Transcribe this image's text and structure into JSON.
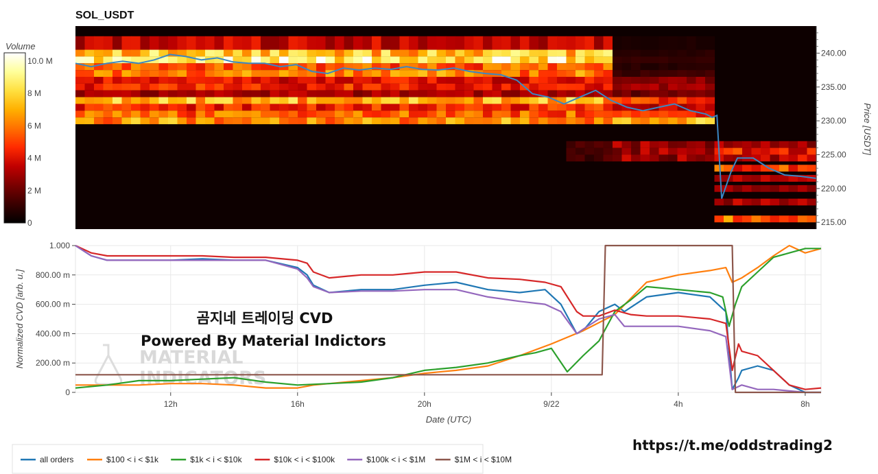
{
  "title": "SOL_USDT",
  "colorbar": {
    "label": "Volume",
    "ticks": [
      "10.0 M",
      "8 M",
      "6 M",
      "4 M",
      "2 M",
      "0"
    ],
    "tick_values": [
      10,
      8,
      6,
      4,
      2,
      0
    ],
    "max": 10.5,
    "colors": [
      "#000000",
      "#3a0000",
      "#7a0000",
      "#c00000",
      "#ff2a00",
      "#ff7000",
      "#ffb000",
      "#ffe040",
      "#ffff9a",
      "#ffffff"
    ]
  },
  "overlay_text": {
    "line1": "곰지네 트레이딩 CVD",
    "line2": "Powered By Material Indictors"
  },
  "watermark": {
    "line1": "MATERIAL",
    "line2": "INDICATORS"
  },
  "url": "https://t.me/oddstrading2",
  "chart_data": [
    {
      "type": "heatmap",
      "title": "SOL_USDT",
      "ylabel": "Price [USDT]",
      "ylim": [
        214,
        244
      ],
      "yticks": [
        "240.00",
        "235.00",
        "230.00",
        "225.00",
        "220.00",
        "215.00"
      ],
      "ytick_values": [
        240,
        235,
        230,
        225,
        220,
        215
      ],
      "x_range": [
        9.0,
        32.5
      ],
      "value_unit": "M",
      "band_rows": [
        {
          "y0": 240.5,
          "y1": 242.5,
          "pre": 3.5,
          "post": 0.6
        },
        {
          "y0": 239.5,
          "y1": 240.5,
          "pre": 7.5,
          "post": 0.8
        },
        {
          "y0": 238.5,
          "y1": 239.5,
          "pre": 8.5,
          "post": 1.0
        },
        {
          "y0": 237.5,
          "y1": 238.5,
          "pre": 5.5,
          "post": 0.8
        },
        {
          "y0": 236.5,
          "y1": 237.5,
          "pre": 6.0,
          "post": 1.2
        },
        {
          "y0": 235.5,
          "y1": 236.5,
          "pre": 4.0,
          "post": 2.5
        },
        {
          "y0": 234.5,
          "y1": 235.5,
          "pre": 4.5,
          "post": 3.0
        },
        {
          "y0": 233.5,
          "y1": 234.5,
          "pre": 3.0,
          "post": 2.0
        },
        {
          "y0": 232.5,
          "y1": 233.5,
          "pre": 7.0,
          "post": 5.0
        },
        {
          "y0": 231.5,
          "y1": 232.5,
          "pre": 4.5,
          "post": 3.5
        },
        {
          "y0": 230.5,
          "y1": 231.5,
          "pre": 5.5,
          "post": 4.5
        },
        {
          "y0": 229.5,
          "y1": 230.5,
          "pre": 6.5,
          "post": 7.0
        }
      ],
      "break_time": 26.0,
      "end_time": 29.3,
      "late_band_rows": [
        {
          "y0": 226.0,
          "y1": 227.0,
          "v": 3.0
        },
        {
          "y0": 225.0,
          "y1": 226.0,
          "v": 4.5
        },
        {
          "y0": 224.0,
          "y1": 225.0,
          "v": 3.5
        },
        {
          "y0": 222.5,
          "y1": 223.5,
          "v": 5.0
        },
        {
          "y0": 221.0,
          "y1": 222.0,
          "v": 3.5
        },
        {
          "y0": 219.5,
          "y1": 220.5,
          "v": 2.5
        },
        {
          "y0": 217.5,
          "y1": 218.5,
          "v": 3.0
        },
        {
          "y0": 215.0,
          "y1": 216.0,
          "v": 5.5
        }
      ],
      "price_line": {
        "name": "price",
        "color": "#3a87c4",
        "x": [
          9.0,
          9.5,
          10.0,
          10.5,
          11.0,
          11.5,
          12.0,
          12.5,
          13.0,
          13.5,
          14.0,
          14.5,
          15.0,
          15.5,
          16.0,
          16.5,
          17.0,
          17.5,
          18.0,
          18.5,
          19.0,
          19.5,
          20.0,
          20.5,
          21.0,
          21.5,
          22.0,
          22.5,
          23.0,
          23.5,
          24.0,
          24.5,
          25.0,
          25.5,
          26.0,
          26.5,
          27.0,
          27.5,
          28.0,
          28.5,
          29.0,
          29.2,
          29.35,
          29.5,
          29.8,
          30.0,
          30.5,
          31.0,
          31.5,
          32.0,
          32.5
        ],
        "y": [
          238.5,
          238.0,
          238.5,
          238.8,
          238.5,
          239.0,
          239.8,
          239.5,
          239.0,
          239.3,
          238.7,
          238.5,
          238.5,
          238.0,
          238.3,
          237.3,
          237.0,
          237.8,
          237.5,
          237.8,
          237.6,
          238.0,
          237.6,
          237.5,
          237.8,
          237.3,
          237.0,
          236.8,
          236.0,
          234.0,
          233.5,
          232.5,
          233.5,
          234.5,
          233.0,
          232.0,
          231.5,
          232.0,
          232.5,
          231.5,
          231.0,
          230.5,
          230.8,
          218.5,
          222.5,
          224.5,
          224.5,
          223.0,
          222.0,
          221.8,
          221.5
        ]
      }
    },
    {
      "type": "line",
      "xlabel": "Date (UTC)",
      "ylabel": "Normalized CVD [arb. u.]",
      "ylim": [
        0,
        1.0
      ],
      "yticks": [
        "1.000",
        "800.00 m",
        "600.00 m",
        "400.00 m",
        "200.00 m",
        "0"
      ],
      "ytick_values": [
        1.0,
        0.8,
        0.6,
        0.4,
        0.2,
        0
      ],
      "xlim": [
        9.0,
        32.5
      ],
      "xticks": [
        "12h",
        "16h",
        "20h",
        "9/22",
        "4h",
        "8h"
      ],
      "xtick_values": [
        12,
        16,
        20,
        24,
        28,
        32
      ],
      "legend_position": "bottom",
      "series": [
        {
          "name": "all orders",
          "color": "#1f77b4",
          "x": [
            9.0,
            9.5,
            10.0,
            11.0,
            12.0,
            13.0,
            14.0,
            15.0,
            16.0,
            16.3,
            16.5,
            17.0,
            18.0,
            19.0,
            20.0,
            21.0,
            22.0,
            23.0,
            23.8,
            24.3,
            24.8,
            25.0,
            25.5,
            26.0,
            26.3,
            27.0,
            28.0,
            29.0,
            29.5,
            29.7,
            29.9,
            30.0,
            30.5,
            31.0,
            31.5,
            32.0,
            32.5
          ],
          "y": [
            1.0,
            0.93,
            0.9,
            0.9,
            0.9,
            0.91,
            0.9,
            0.9,
            0.85,
            0.8,
            0.73,
            0.68,
            0.7,
            0.7,
            0.73,
            0.75,
            0.7,
            0.68,
            0.7,
            0.6,
            0.4,
            0.42,
            0.55,
            0.6,
            0.55,
            0.65,
            0.68,
            0.65,
            0.55,
            0.02,
            0.1,
            0.15,
            0.18,
            0.15,
            0.05,
            0.0,
            0.0
          ]
        },
        {
          "name": "$100 < i < $1k",
          "color": "#ff7f0e",
          "x": [
            9.0,
            10.0,
            11.0,
            12.0,
            13.0,
            14.0,
            15.0,
            16.0,
            16.5,
            17.0,
            18.0,
            19.0,
            20.0,
            21.0,
            22.0,
            23.0,
            24.0,
            25.0,
            26.0,
            27.0,
            28.0,
            29.0,
            29.5,
            29.7,
            30.0,
            30.5,
            31.0,
            31.5,
            32.0,
            32.5
          ],
          "y": [
            0.05,
            0.05,
            0.05,
            0.06,
            0.06,
            0.05,
            0.03,
            0.03,
            0.05,
            0.06,
            0.08,
            0.1,
            0.13,
            0.15,
            0.18,
            0.25,
            0.33,
            0.42,
            0.53,
            0.75,
            0.8,
            0.83,
            0.85,
            0.75,
            0.78,
            0.85,
            0.93,
            1.0,
            0.95,
            0.98
          ]
        },
        {
          "name": "$1k < i < $10k",
          "color": "#2ca02c",
          "x": [
            9.0,
            10.0,
            11.0,
            12.0,
            13.0,
            14.0,
            15.0,
            16.0,
            17.0,
            18.0,
            19.0,
            20.0,
            21.0,
            22.0,
            23.0,
            23.5,
            24.0,
            24.5,
            25.0,
            25.5,
            26.0,
            26.5,
            27.0,
            28.0,
            29.0,
            29.4,
            29.6,
            29.8,
            30.0,
            30.5,
            31.0,
            31.5,
            32.0,
            32.5
          ],
          "y": [
            0.03,
            0.05,
            0.08,
            0.08,
            0.09,
            0.1,
            0.07,
            0.05,
            0.06,
            0.07,
            0.1,
            0.15,
            0.17,
            0.2,
            0.25,
            0.27,
            0.3,
            0.14,
            0.25,
            0.35,
            0.55,
            0.63,
            0.72,
            0.7,
            0.68,
            0.65,
            0.45,
            0.6,
            0.72,
            0.82,
            0.92,
            0.95,
            0.98,
            0.98
          ]
        },
        {
          "name": "$10k < i < $100k",
          "color": "#d62728",
          "x": [
            9.0,
            9.5,
            10.0,
            11.0,
            12.0,
            13.0,
            14.0,
            15.0,
            16.0,
            16.3,
            16.5,
            17.0,
            18.0,
            19.0,
            20.0,
            21.0,
            22.0,
            23.0,
            23.8,
            24.3,
            24.8,
            25.0,
            25.5,
            26.0,
            26.5,
            27.0,
            28.0,
            29.0,
            29.5,
            29.7,
            29.9,
            30.0,
            30.5,
            31.0,
            31.5,
            32.0,
            32.5
          ],
          "y": [
            1.0,
            0.95,
            0.93,
            0.93,
            0.93,
            0.93,
            0.92,
            0.92,
            0.9,
            0.88,
            0.82,
            0.78,
            0.8,
            0.8,
            0.82,
            0.82,
            0.78,
            0.77,
            0.75,
            0.72,
            0.55,
            0.52,
            0.52,
            0.56,
            0.53,
            0.52,
            0.52,
            0.5,
            0.47,
            0.15,
            0.33,
            0.28,
            0.25,
            0.15,
            0.05,
            0.02,
            0.03
          ]
        },
        {
          "name": "$100k < i < $1M",
          "color": "#9467bd",
          "x": [
            9.0,
            9.5,
            10.0,
            11.0,
            12.0,
            13.0,
            14.0,
            15.0,
            16.0,
            16.3,
            16.5,
            17.0,
            18.0,
            19.0,
            20.0,
            21.0,
            22.0,
            23.0,
            23.8,
            24.3,
            24.8,
            25.0,
            25.5,
            26.0,
            26.3,
            27.0,
            28.0,
            29.0,
            29.5,
            29.7,
            30.0,
            30.5,
            31.0,
            31.5,
            32.0,
            32.5
          ],
          "y": [
            1.0,
            0.93,
            0.9,
            0.9,
            0.9,
            0.9,
            0.9,
            0.9,
            0.84,
            0.78,
            0.72,
            0.68,
            0.69,
            0.69,
            0.7,
            0.7,
            0.65,
            0.62,
            0.6,
            0.55,
            0.4,
            0.43,
            0.5,
            0.53,
            0.45,
            0.45,
            0.45,
            0.42,
            0.38,
            0.02,
            0.05,
            0.02,
            0.02,
            0.01,
            0.0,
            0.0
          ]
        },
        {
          "name": "$1M < i < $10M",
          "color": "#8c564b",
          "x": [
            9.0,
            25.6,
            25.7,
            29.7,
            29.8,
            32.5
          ],
          "y": [
            0.12,
            0.12,
            1.0,
            1.0,
            0.0,
            0.0
          ]
        }
      ]
    }
  ]
}
